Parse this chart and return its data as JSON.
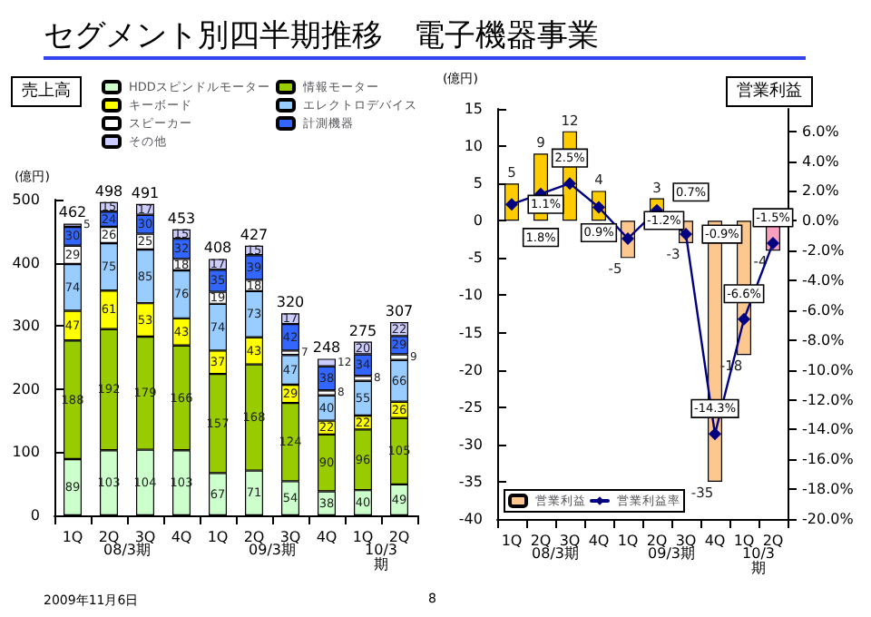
{
  "chart_data": [
    {
      "type": "bar",
      "title": "セグメント別四半期推移　電子機器事業",
      "subtitle": "売上高",
      "ylabel": "(億円)",
      "stacked": true,
      "data_labels": true,
      "legend": "top",
      "grid": false,
      "categories": [
        "1Q",
        "2Q",
        "3Q",
        "4Q",
        "1Q",
        "2Q",
        "3Q",
        "4Q",
        "1Q",
        "2Q"
      ],
      "ylim": [
        0,
        500
      ],
      "yticks": [
        0,
        100,
        200,
        300,
        400,
        500
      ],
      "series": [
        {
          "name": "HDDスピンドルモーター",
          "color": "#ccffcc",
          "values": [
            89,
            103,
            104,
            103,
            67,
            71,
            54,
            38,
            40,
            49
          ]
        },
        {
          "name": "情報モーター",
          "color": "#99cc00",
          "values": [
            188,
            192,
            179,
            166,
            157,
            168,
            124,
            90,
            96,
            105
          ]
        },
        {
          "name": "キーボード",
          "color": "#ffff00",
          "values": [
            47,
            61,
            53,
            43,
            37,
            43,
            29,
            22,
            22,
            26
          ]
        },
        {
          "name": "エレクトロデバイス",
          "color": "#99ccff",
          "values": [
            74,
            75,
            85,
            76,
            74,
            73,
            47,
            40,
            55,
            66
          ]
        },
        {
          "name": "スピーカー",
          "color": "#ffffff",
          "values": [
            29,
            26,
            25,
            18,
            19,
            18,
            7,
            8,
            8,
            9
          ]
        },
        {
          "name": "計測機器",
          "color": "#3366ff",
          "values": [
            30,
            24,
            30,
            32,
            35,
            39,
            42,
            38,
            34,
            29
          ]
        },
        {
          "name": "その他",
          "color": "#ccccff",
          "values": [
            5,
            15,
            17,
            15,
            17,
            15,
            17,
            12,
            20,
            22
          ]
        }
      ],
      "totals": [
        "462",
        "498",
        "491",
        "453",
        "408",
        "427",
        "320",
        "248",
        "275",
        "307"
      ],
      "annotations": [
        "08/3期",
        "09/3期",
        "10/3期",
        "2009年11月6日",
        "8"
      ]
    },
    {
      "type": "bar",
      "subtitle": "営業利益",
      "ylabel": "(億円)",
      "legend": "bottom left",
      "grid": false,
      "categories": [
        "1Q",
        "2Q",
        "3Q",
        "4Q",
        "1Q",
        "2Q",
        "3Q",
        "4Q",
        "1Q",
        "2Q"
      ],
      "ylim": [
        -40,
        15
      ],
      "yticks": [
        -40,
        -35,
        -30,
        -25,
        -20,
        -15,
        -10,
        -5,
        0,
        5,
        10,
        15
      ],
      "y2lim": [
        -20,
        7.5
      ],
      "y2ticks": [
        {
          "value": -20,
          "label": "-20.0%"
        },
        {
          "value": -18,
          "label": "-18.0%"
        },
        {
          "value": -16,
          "label": "-16.0%"
        },
        {
          "value": -14,
          "label": "-14.0%"
        },
        {
          "value": -12,
          "label": "-12.0%"
        },
        {
          "value": -10,
          "label": "-10.0%"
        },
        {
          "value": -8,
          "label": "-8.0%"
        },
        {
          "value": -6,
          "label": "-6.0%"
        },
        {
          "value": -4,
          "label": "-4.0%"
        },
        {
          "value": -2,
          "label": "-2.0%"
        },
        {
          "value": 0,
          "label": "0.0%"
        },
        {
          "value": 2,
          "label": "2.0%"
        },
        {
          "value": 4,
          "label": "4.0%"
        },
        {
          "value": 6,
          "label": "6.0%"
        }
      ],
      "series": [
        {
          "name": "営業利益",
          "type": "bar",
          "color": "#fcc890",
          "colors": [
            "#ffcc00",
            "#ffcc00",
            "#ffcc00",
            "#ffcc00",
            "#fcc890",
            "#ffcc00",
            "#fcc890",
            "#fcc890",
            "#fcc890",
            "#f9a0c0"
          ],
          "values": [
            5,
            9,
            12,
            4,
            -5,
            3,
            -3,
            -35,
            -18,
            -4
          ],
          "value_labels": [
            "5",
            "9",
            "12",
            "4",
            "-5",
            "3",
            "-3",
            "-35",
            "-18",
            "-4"
          ]
        },
        {
          "name": "営業利益率",
          "type": "line",
          "axis": "y2",
          "color": "#000080",
          "marker": "diamond",
          "line_style": "solid",
          "values": [
            1.1,
            1.8,
            2.5,
            0.9,
            -1.2,
            0.7,
            -0.9,
            -14.3,
            -6.6,
            -1.5
          ],
          "value_labels": [
            "1.1%",
            "1.8%",
            "2.5%",
            "0.9%",
            "-1.2%",
            "0.7%",
            "-0.9%",
            "-14.3%",
            "-6.6%",
            "-1.5%"
          ]
        }
      ],
      "annotations": [
        "08/3期",
        "09/3期",
        "10/3期"
      ]
    }
  ]
}
